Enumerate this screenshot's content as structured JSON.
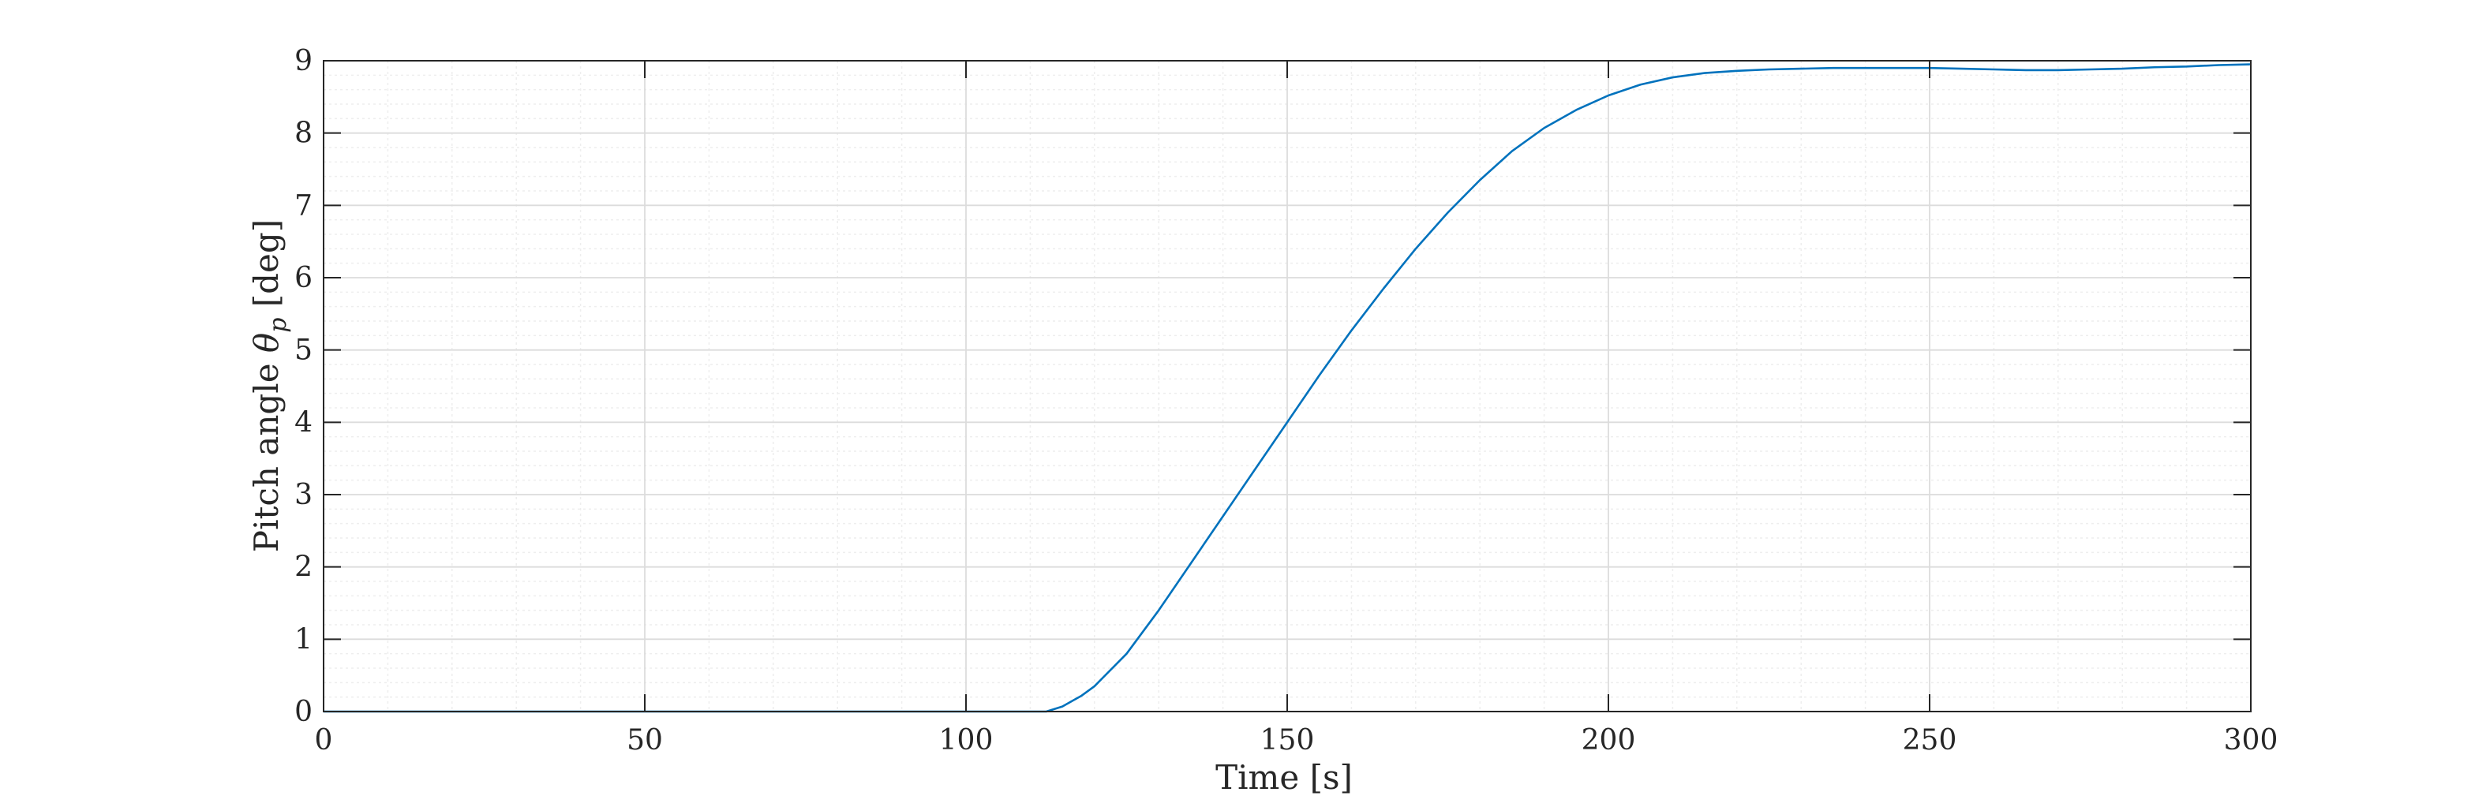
{
  "chart_data": {
    "type": "line",
    "xlabel": "Time [s]",
    "ylabel_text": "Pitch angle ",
    "ylabel_symbol": "θ",
    "ylabel_subscript": "p",
    "ylabel_unit": " [deg]",
    "xlim": [
      0,
      300
    ],
    "ylim": [
      0,
      9
    ],
    "xticks": [
      0,
      50,
      100,
      150,
      200,
      250,
      300
    ],
    "yticks": [
      0,
      1,
      2,
      3,
      4,
      5,
      6,
      7,
      8,
      9
    ],
    "grid": true,
    "minor_grid": true,
    "series": [
      {
        "color": "#0072BD",
        "x": [
          0,
          112.5,
          115,
          118,
          120,
          125,
          130,
          135,
          140,
          145,
          150,
          155,
          160,
          165,
          170,
          175,
          180,
          185,
          190,
          195,
          200,
          205,
          210,
          215,
          220,
          225,
          230,
          235,
          240,
          245,
          250,
          255,
          260,
          265,
          270,
          275,
          280,
          285,
          290,
          295,
          300
        ],
        "y": [
          0,
          0,
          0.07,
          0.22,
          0.35,
          0.8,
          1.4,
          2.05,
          2.7,
          3.35,
          4.0,
          4.65,
          5.27,
          5.85,
          6.4,
          6.9,
          7.35,
          7.75,
          8.07,
          8.32,
          8.52,
          8.67,
          8.77,
          8.83,
          8.86,
          8.88,
          8.89,
          8.9,
          8.9,
          8.9,
          8.9,
          8.89,
          8.88,
          8.87,
          8.87,
          8.88,
          8.89,
          8.91,
          8.92,
          8.94,
          8.95
        ]
      }
    ]
  }
}
